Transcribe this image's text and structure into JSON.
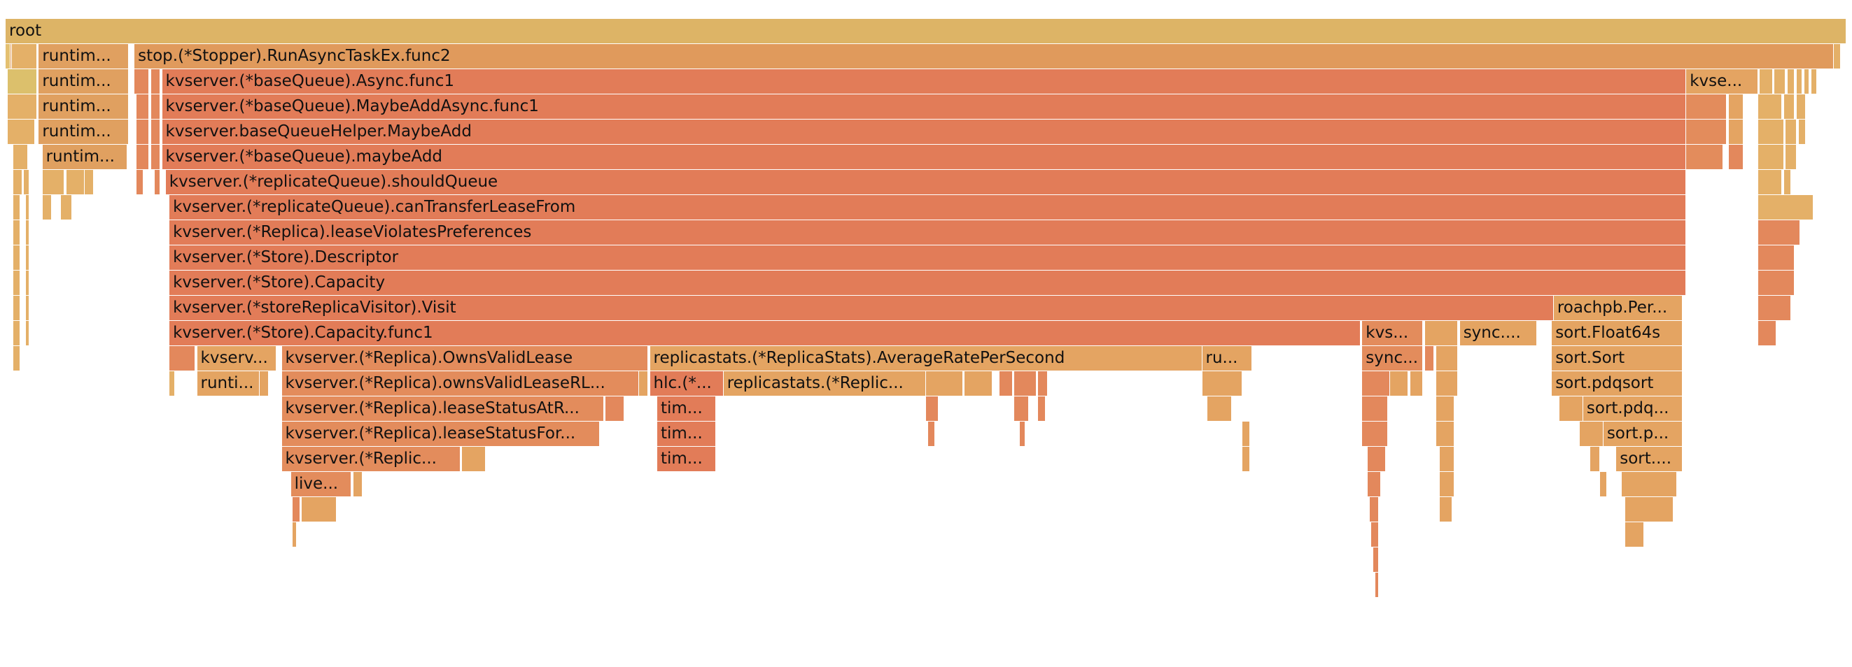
{
  "flamegraph": {
    "frames": [
      {
        "d": 0,
        "s": 0,
        "e": 1,
        "c": "#ddb466",
        "t": "root"
      },
      {
        "d": 1,
        "s": 0.0,
        "e": 0.0025,
        "c": "#e4c070",
        "t": ""
      },
      {
        "d": 1,
        "s": 0.0025,
        "e": 0.0035,
        "c": "#e09b5a",
        "t": ""
      },
      {
        "d": 1,
        "s": 0.0035,
        "e": 0.017,
        "c": "#e4b068",
        "t": ""
      },
      {
        "d": 1,
        "s": 0.018,
        "e": 0.067,
        "c": "#e0a060",
        "t": "runtim..."
      },
      {
        "d": 1,
        "s": 0.07,
        "e": 0.993,
        "c": "#e09a5c",
        "t": "stop.(*Stopper).RunAsyncTaskEx.func2"
      },
      {
        "d": 1,
        "s": 0.993,
        "e": 0.997,
        "c": "#e4b068",
        "t": ""
      },
      {
        "d": 2,
        "s": 0.001,
        "e": 0.017,
        "c": "#dcc06c",
        "t": ""
      },
      {
        "d": 2,
        "s": 0.018,
        "e": 0.067,
        "c": "#e0a060",
        "t": "runtim..."
      },
      {
        "d": 2,
        "s": 0.07,
        "e": 0.078,
        "c": "#e3885c",
        "t": ""
      },
      {
        "d": 2,
        "s": 0.079,
        "e": 0.084,
        "c": "#e3885c",
        "t": ""
      },
      {
        "d": 2,
        "s": 0.085,
        "e": 0.913,
        "c": "#e27c58",
        "t": "kvserver.(*baseQueue).Async.func1"
      },
      {
        "d": 2,
        "s": 0.913,
        "e": 0.952,
        "c": "#e4a462",
        "t": "kvse..."
      },
      {
        "d": 2,
        "s": 0.953,
        "e": 0.96,
        "c": "#e4b068",
        "t": ""
      },
      {
        "d": 2,
        "s": 0.961,
        "e": 0.967,
        "c": "#e4b068",
        "t": ""
      },
      {
        "d": 2,
        "s": 0.968,
        "e": 0.972,
        "c": "#e4b068",
        "t": ""
      },
      {
        "d": 2,
        "s": 0.973,
        "e": 0.976,
        "c": "#e4b068",
        "t": ""
      },
      {
        "d": 2,
        "s": 0.977,
        "e": 0.98,
        "c": "#e4b068",
        "t": ""
      },
      {
        "d": 2,
        "s": 0.981,
        "e": 0.984,
        "c": "#e4b068",
        "t": ""
      },
      {
        "d": 3,
        "s": 0.001,
        "e": 0.017,
        "c": "#e4b068",
        "t": ""
      },
      {
        "d": 3,
        "s": 0.018,
        "e": 0.067,
        "c": "#e0a060",
        "t": "runtim..."
      },
      {
        "d": 3,
        "s": 0.071,
        "e": 0.078,
        "c": "#e3885c",
        "t": ""
      },
      {
        "d": 3,
        "s": 0.079,
        "e": 0.084,
        "c": "#e3885c",
        "t": ""
      },
      {
        "d": 3,
        "s": 0.085,
        "e": 0.913,
        "c": "#e27c58",
        "t": "kvserver.(*baseQueue).MaybeAddAsync.func1"
      },
      {
        "d": 3,
        "s": 0.913,
        "e": 0.935,
        "c": "#e38c5c",
        "t": ""
      },
      {
        "d": 3,
        "s": 0.936,
        "e": 0.944,
        "c": "#e4a462",
        "t": ""
      },
      {
        "d": 3,
        "s": 0.952,
        "e": 0.965,
        "c": "#e4b068",
        "t": ""
      },
      {
        "d": 3,
        "s": 0.966,
        "e": 0.972,
        "c": "#e4b068",
        "t": ""
      },
      {
        "d": 3,
        "s": 0.973,
        "e": 0.978,
        "c": "#e4b068",
        "t": ""
      },
      {
        "d": 4,
        "s": 0.001,
        "e": 0.016,
        "c": "#e4b068",
        "t": ""
      },
      {
        "d": 4,
        "s": 0.018,
        "e": 0.067,
        "c": "#e0a060",
        "t": "runtim..."
      },
      {
        "d": 4,
        "s": 0.071,
        "e": 0.078,
        "c": "#e3885c",
        "t": ""
      },
      {
        "d": 4,
        "s": 0.079,
        "e": 0.084,
        "c": "#e3885c",
        "t": ""
      },
      {
        "d": 4,
        "s": 0.085,
        "e": 0.913,
        "c": "#e27c58",
        "t": "kvserver.baseQueueHelper.MaybeAdd"
      },
      {
        "d": 4,
        "s": 0.913,
        "e": 0.935,
        "c": "#e38c5c",
        "t": ""
      },
      {
        "d": 4,
        "s": 0.936,
        "e": 0.944,
        "c": "#e4a462",
        "t": ""
      },
      {
        "d": 4,
        "s": 0.952,
        "e": 0.966,
        "c": "#e4b068",
        "t": ""
      },
      {
        "d": 4,
        "s": 0.967,
        "e": 0.973,
        "c": "#e4b068",
        "t": ""
      },
      {
        "d": 4,
        "s": 0.974,
        "e": 0.978,
        "c": "#e4b068",
        "t": ""
      },
      {
        "d": 5,
        "s": 0.004,
        "e": 0.012,
        "c": "#e4b068",
        "t": ""
      },
      {
        "d": 5,
        "s": 0.02,
        "e": 0.066,
        "c": "#e0a060",
        "t": "runtim..."
      },
      {
        "d": 5,
        "s": 0.071,
        "e": 0.078,
        "c": "#e3885c",
        "t": ""
      },
      {
        "d": 5,
        "s": 0.079,
        "e": 0.084,
        "c": "#e3885c",
        "t": ""
      },
      {
        "d": 5,
        "s": 0.085,
        "e": 0.913,
        "c": "#e27c58",
        "t": "kvserver.(*baseQueue).maybeAdd"
      },
      {
        "d": 5,
        "s": 0.913,
        "e": 0.933,
        "c": "#e38c5c",
        "t": ""
      },
      {
        "d": 5,
        "s": 0.936,
        "e": 0.944,
        "c": "#e3885c",
        "t": ""
      },
      {
        "d": 5,
        "s": 0.952,
        "e": 0.966,
        "c": "#e4b068",
        "t": ""
      },
      {
        "d": 5,
        "s": 0.967,
        "e": 0.973,
        "c": "#e4b068",
        "t": ""
      },
      {
        "d": 6,
        "s": 0.004,
        "e": 0.009,
        "c": "#e4b068",
        "t": ""
      },
      {
        "d": 6,
        "s": 0.01,
        "e": 0.013,
        "c": "#e4b068",
        "t": ""
      },
      {
        "d": 6,
        "s": 0.02,
        "e": 0.032,
        "c": "#e4b068",
        "t": ""
      },
      {
        "d": 6,
        "s": 0.033,
        "e": 0.043,
        "c": "#e4b068",
        "t": ""
      },
      {
        "d": 6,
        "s": 0.043,
        "e": 0.048,
        "c": "#e4b068",
        "t": ""
      },
      {
        "d": 6,
        "s": 0.071,
        "e": 0.075,
        "c": "#e3885c",
        "t": ""
      },
      {
        "d": 6,
        "s": 0.081,
        "e": 0.084,
        "c": "#e3885c",
        "t": ""
      },
      {
        "d": 6,
        "s": 0.087,
        "e": 0.913,
        "c": "#e27c58",
        "t": "kvserver.(*replicateQueue).shouldQueue"
      },
      {
        "d": 6,
        "s": 0.952,
        "e": 0.965,
        "c": "#e4b068",
        "t": ""
      },
      {
        "d": 6,
        "s": 0.966,
        "e": 0.97,
        "c": "#e4b068",
        "t": ""
      },
      {
        "d": 7,
        "s": 0.004,
        "e": 0.008,
        "c": "#e4b068",
        "t": ""
      },
      {
        "d": 7,
        "s": 0.011,
        "e": 0.013,
        "c": "#e4b068",
        "t": ""
      },
      {
        "d": 7,
        "s": 0.02,
        "e": 0.025,
        "c": "#e4b068",
        "t": ""
      },
      {
        "d": 7,
        "s": 0.03,
        "e": 0.036,
        "c": "#e4b068",
        "t": ""
      },
      {
        "d": 7,
        "s": 0.089,
        "e": 0.913,
        "c": "#e27c58",
        "t": "kvserver.(*replicateQueue).canTransferLeaseFrom"
      },
      {
        "d": 7,
        "s": 0.952,
        "e": 0.982,
        "c": "#e4b068",
        "t": ""
      },
      {
        "d": 8,
        "s": 0.004,
        "e": 0.008,
        "c": "#e4b068",
        "t": ""
      },
      {
        "d": 8,
        "s": 0.011,
        "e": 0.013,
        "c": "#e4b068",
        "t": ""
      },
      {
        "d": 8,
        "s": 0.089,
        "e": 0.913,
        "c": "#e27c58",
        "t": "kvserver.(*Replica).leaseViolatesPreferences"
      },
      {
        "d": 8,
        "s": 0.952,
        "e": 0.975,
        "c": "#e3885c",
        "t": ""
      },
      {
        "d": 9,
        "s": 0.004,
        "e": 0.008,
        "c": "#e4b068",
        "t": ""
      },
      {
        "d": 9,
        "s": 0.011,
        "e": 0.013,
        "c": "#e4b068",
        "t": ""
      },
      {
        "d": 9,
        "s": 0.089,
        "e": 0.913,
        "c": "#e27c58",
        "t": "kvserver.(*Store).Descriptor"
      },
      {
        "d": 9,
        "s": 0.952,
        "e": 0.972,
        "c": "#e3885c",
        "t": ""
      },
      {
        "d": 10,
        "s": 0.004,
        "e": 0.008,
        "c": "#e4b068",
        "t": ""
      },
      {
        "d": 10,
        "s": 0.011,
        "e": 0.013,
        "c": "#e4b068",
        "t": ""
      },
      {
        "d": 10,
        "s": 0.089,
        "e": 0.913,
        "c": "#e27c58",
        "t": "kvserver.(*Store).Capacity"
      },
      {
        "d": 10,
        "s": 0.952,
        "e": 0.972,
        "c": "#e3885c",
        "t": ""
      },
      {
        "d": 11,
        "s": 0.004,
        "e": 0.008,
        "c": "#e4b068",
        "t": ""
      },
      {
        "d": 11,
        "s": 0.011,
        "e": 0.013,
        "c": "#e4b068",
        "t": ""
      },
      {
        "d": 11,
        "s": 0.089,
        "e": 0.841,
        "c": "#e27c58",
        "t": "kvserver.(*storeReplicaVisitor).Visit"
      },
      {
        "d": 11,
        "s": 0.841,
        "e": 0.911,
        "c": "#e4a462",
        "t": "roachpb.Per..."
      },
      {
        "d": 11,
        "s": 0.952,
        "e": 0.97,
        "c": "#e3885c",
        "t": ""
      },
      {
        "d": 12,
        "s": 0.004,
        "e": 0.008,
        "c": "#e4b068",
        "t": ""
      },
      {
        "d": 12,
        "s": 0.011,
        "e": 0.013,
        "c": "#e4b068",
        "t": ""
      },
      {
        "d": 12,
        "s": 0.089,
        "e": 0.736,
        "c": "#e27c58",
        "t": "kvserver.(*Store).Capacity.func1"
      },
      {
        "d": 12,
        "s": 0.737,
        "e": 0.77,
        "c": "#e38c5c",
        "t": "kvs..."
      },
      {
        "d": 12,
        "s": 0.771,
        "e": 0.789,
        "c": "#e4a462",
        "t": ""
      },
      {
        "d": 12,
        "s": 0.79,
        "e": 0.832,
        "c": "#e4a462",
        "t": "sync...."
      },
      {
        "d": 12,
        "s": 0.84,
        "e": 0.911,
        "c": "#e4a462",
        "t": "sort.Float64s"
      },
      {
        "d": 12,
        "s": 0.952,
        "e": 0.962,
        "c": "#e3885c",
        "t": ""
      },
      {
        "d": 13,
        "s": 0.004,
        "e": 0.008,
        "c": "#e4b068",
        "t": ""
      },
      {
        "d": 13,
        "s": 0.089,
        "e": 0.103,
        "c": "#e3885c",
        "t": ""
      },
      {
        "d": 13,
        "s": 0.104,
        "e": 0.147,
        "c": "#e4a462",
        "t": "kvserv..."
      },
      {
        "d": 13,
        "s": 0.15,
        "e": 0.349,
        "c": "#e38c5c",
        "t": "kvserver.(*Replica).OwnsValidLease"
      },
      {
        "d": 13,
        "s": 0.35,
        "e": 0.65,
        "c": "#e4a462",
        "t": "replicastats.(*ReplicaStats).AverageRatePerSecond"
      },
      {
        "d": 13,
        "s": 0.65,
        "e": 0.677,
        "c": "#e4a462",
        "t": "ru..."
      },
      {
        "d": 13,
        "s": 0.737,
        "e": 0.77,
        "c": "#e38c5c",
        "t": "sync..."
      },
      {
        "d": 13,
        "s": 0.771,
        "e": 0.776,
        "c": "#e3885c",
        "t": ""
      },
      {
        "d": 13,
        "s": 0.777,
        "e": 0.789,
        "c": "#e4a462",
        "t": ""
      },
      {
        "d": 13,
        "s": 0.84,
        "e": 0.911,
        "c": "#e4a462",
        "t": "sort.Sort"
      },
      {
        "d": 14,
        "s": 0.089,
        "e": 0.092,
        "c": "#e4b068",
        "t": ""
      },
      {
        "d": 14,
        "s": 0.104,
        "e": 0.138,
        "c": "#e4a462",
        "t": "runti..."
      },
      {
        "d": 14,
        "s": 0.138,
        "e": 0.143,
        "c": "#e4a462",
        "t": ""
      },
      {
        "d": 14,
        "s": 0.15,
        "e": 0.344,
        "c": "#e38c5c",
        "t": "kvserver.(*Replica).ownsValidLeaseRL..."
      },
      {
        "d": 14,
        "s": 0.344,
        "e": 0.349,
        "c": "#e4a462",
        "t": ""
      },
      {
        "d": 14,
        "s": 0.35,
        "e": 0.39,
        "c": "#e27c58",
        "t": "hlc.(*..."
      },
      {
        "d": 14,
        "s": 0.39,
        "e": 0.5,
        "c": "#e4a462",
        "t": "replicastats.(*Replic..."
      },
      {
        "d": 14,
        "s": 0.5,
        "e": 0.52,
        "c": "#e4a462",
        "t": ""
      },
      {
        "d": 14,
        "s": 0.521,
        "e": 0.536,
        "c": "#e4a462",
        "t": ""
      },
      {
        "d": 14,
        "s": 0.54,
        "e": 0.547,
        "c": "#e3885c",
        "t": ""
      },
      {
        "d": 14,
        "s": 0.548,
        "e": 0.56,
        "c": "#e3885c",
        "t": ""
      },
      {
        "d": 14,
        "s": 0.561,
        "e": 0.566,
        "c": "#e3885c",
        "t": ""
      },
      {
        "d": 14,
        "s": 0.65,
        "e": 0.672,
        "c": "#e4a462",
        "t": ""
      },
      {
        "d": 14,
        "s": 0.737,
        "e": 0.752,
        "c": "#e3885c",
        "t": ""
      },
      {
        "d": 14,
        "s": 0.752,
        "e": 0.762,
        "c": "#e4a462",
        "t": ""
      },
      {
        "d": 14,
        "s": 0.763,
        "e": 0.77,
        "c": "#e4a462",
        "t": ""
      },
      {
        "d": 14,
        "s": 0.777,
        "e": 0.789,
        "c": "#e4a462",
        "t": ""
      },
      {
        "d": 14,
        "s": 0.84,
        "e": 0.911,
        "c": "#e4a462",
        "t": "sort.pdqsort"
      },
      {
        "d": 15,
        "s": 0.15,
        "e": 0.325,
        "c": "#e38c5c",
        "t": "kvserver.(*Replica).leaseStatusAtR..."
      },
      {
        "d": 15,
        "s": 0.326,
        "e": 0.336,
        "c": "#e3885c",
        "t": ""
      },
      {
        "d": 15,
        "s": 0.354,
        "e": 0.386,
        "c": "#e27c58",
        "t": "tim..."
      },
      {
        "d": 15,
        "s": 0.5,
        "e": 0.507,
        "c": "#e3885c",
        "t": ""
      },
      {
        "d": 15,
        "s": 0.548,
        "e": 0.556,
        "c": "#e3885c",
        "t": ""
      },
      {
        "d": 15,
        "s": 0.561,
        "e": 0.565,
        "c": "#e3885c",
        "t": ""
      },
      {
        "d": 15,
        "s": 0.653,
        "e": 0.666,
        "c": "#e4a462",
        "t": ""
      },
      {
        "d": 15,
        "s": 0.737,
        "e": 0.751,
        "c": "#e3885c",
        "t": ""
      },
      {
        "d": 15,
        "s": 0.777,
        "e": 0.787,
        "c": "#e4a462",
        "t": ""
      },
      {
        "d": 15,
        "s": 0.844,
        "e": 0.857,
        "c": "#e4a462",
        "t": ""
      },
      {
        "d": 15,
        "s": 0.857,
        "e": 0.911,
        "c": "#e4a462",
        "t": "sort.pdq..."
      },
      {
        "d": 16,
        "s": 0.15,
        "e": 0.323,
        "c": "#e38c5c",
        "t": "kvserver.(*Replica).leaseStatusFor..."
      },
      {
        "d": 16,
        "s": 0.354,
        "e": 0.386,
        "c": "#e27c58",
        "t": "tim..."
      },
      {
        "d": 16,
        "s": 0.501,
        "e": 0.505,
        "c": "#e3885c",
        "t": ""
      },
      {
        "d": 16,
        "s": 0.551,
        "e": 0.554,
        "c": "#e3885c",
        "t": ""
      },
      {
        "d": 16,
        "s": 0.672,
        "e": 0.676,
        "c": "#e4a462",
        "t": ""
      },
      {
        "d": 16,
        "s": 0.737,
        "e": 0.751,
        "c": "#e3885c",
        "t": ""
      },
      {
        "d": 16,
        "s": 0.777,
        "e": 0.787,
        "c": "#e4a462",
        "t": ""
      },
      {
        "d": 16,
        "s": 0.855,
        "e": 0.868,
        "c": "#e4a462",
        "t": ""
      },
      {
        "d": 16,
        "s": 0.868,
        "e": 0.911,
        "c": "#e4a462",
        "t": "sort.p..."
      },
      {
        "d": 17,
        "s": 0.15,
        "e": 0.247,
        "c": "#e38c5c",
        "t": "kvserver.(*Replic..."
      },
      {
        "d": 17,
        "s": 0.248,
        "e": 0.261,
        "c": "#e4a462",
        "t": ""
      },
      {
        "d": 17,
        "s": 0.354,
        "e": 0.386,
        "c": "#e27c58",
        "t": "tim..."
      },
      {
        "d": 17,
        "s": 0.672,
        "e": 0.676,
        "c": "#e4a462",
        "t": ""
      },
      {
        "d": 17,
        "s": 0.74,
        "e": 0.75,
        "c": "#e3885c",
        "t": ""
      },
      {
        "d": 17,
        "s": 0.779,
        "e": 0.787,
        "c": "#e4a462",
        "t": ""
      },
      {
        "d": 17,
        "s": 0.861,
        "e": 0.866,
        "c": "#e4a462",
        "t": ""
      },
      {
        "d": 17,
        "s": 0.875,
        "e": 0.911,
        "c": "#e4a462",
        "t": "sort...."
      },
      {
        "d": 18,
        "s": 0.155,
        "e": 0.188,
        "c": "#e38c5c",
        "t": "live..."
      },
      {
        "d": 18,
        "s": 0.189,
        "e": 0.194,
        "c": "#e4a462",
        "t": ""
      },
      {
        "d": 18,
        "s": 0.74,
        "e": 0.747,
        "c": "#e3885c",
        "t": ""
      },
      {
        "d": 18,
        "s": 0.779,
        "e": 0.787,
        "c": "#e4a462",
        "t": ""
      },
      {
        "d": 18,
        "s": 0.866,
        "e": 0.87,
        "c": "#e4a462",
        "t": ""
      },
      {
        "d": 18,
        "s": 0.878,
        "e": 0.908,
        "c": "#e4a462",
        "t": ""
      },
      {
        "d": 19,
        "s": 0.156,
        "e": 0.16,
        "c": "#e3885c",
        "t": ""
      },
      {
        "d": 19,
        "s": 0.161,
        "e": 0.18,
        "c": "#e4a462",
        "t": ""
      },
      {
        "d": 19,
        "s": 0.741,
        "e": 0.746,
        "c": "#e3885c",
        "t": ""
      },
      {
        "d": 19,
        "s": 0.779,
        "e": 0.786,
        "c": "#e4a462",
        "t": ""
      },
      {
        "d": 19,
        "s": 0.88,
        "e": 0.906,
        "c": "#e4a462",
        "t": ""
      },
      {
        "d": 20,
        "s": 0.156,
        "e": 0.158,
        "c": "#e4a462",
        "t": ""
      },
      {
        "d": 20,
        "s": 0.742,
        "e": 0.746,
        "c": "#e3885c",
        "t": ""
      },
      {
        "d": 20,
        "s": 0.88,
        "e": 0.89,
        "c": "#e4a462",
        "t": ""
      },
      {
        "d": 21,
        "s": 0.743,
        "e": 0.746,
        "c": "#e3885c",
        "t": ""
      },
      {
        "d": 22,
        "s": 0.744,
        "e": 0.746,
        "c": "#e3885c",
        "t": ""
      }
    ]
  }
}
